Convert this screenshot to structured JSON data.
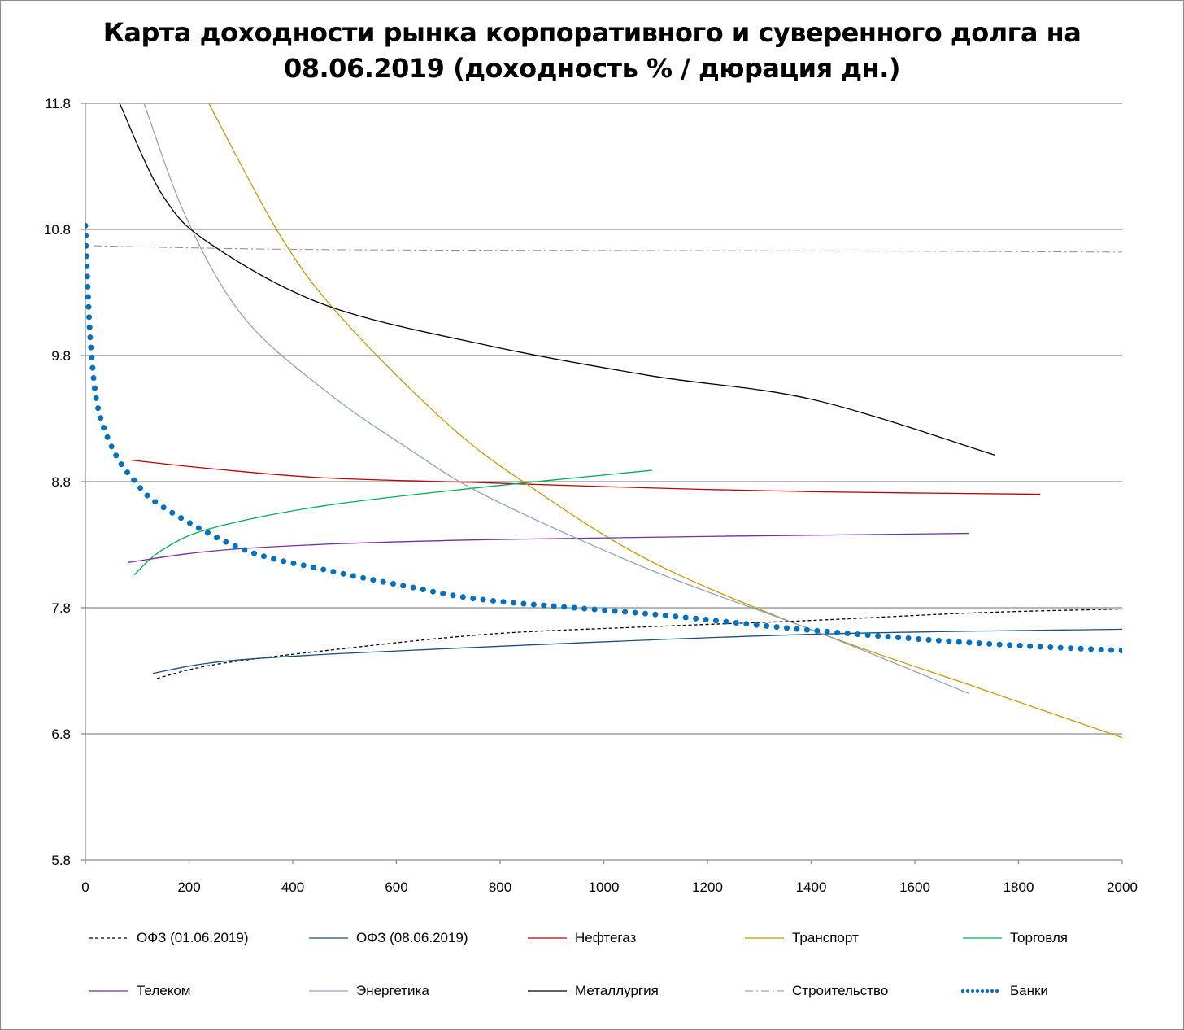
{
  "chart_data": {
    "type": "line",
    "title_lines": [
      "Карта доходности рынка корпоративного и суверенного долга на",
      "08.06.2019 (доходность % / дюрация дн.)"
    ],
    "xlabel": "",
    "ylabel": "",
    "xlim": [
      0,
      2000
    ],
    "ylim": [
      5.8,
      11.8
    ],
    "x_ticks": [
      "0",
      "200",
      "400",
      "600",
      "800",
      "1000",
      "1200",
      "1400",
      "1600",
      "1800",
      "2000"
    ],
    "y_ticks": [
      "11.8",
      "10.8",
      "9.8",
      "8.8",
      "7.8",
      "6.8",
      "5.8"
    ],
    "grid": "horizontal",
    "legend_position": "bottom",
    "series": [
      {
        "name": "ОФЗ (01.06.2019)",
        "color": "#000000",
        "style": "dashed",
        "points": [
          [
            138,
            7.24
          ],
          [
            250,
            7.35
          ],
          [
            463,
            7.46
          ],
          [
            776,
            7.59
          ],
          [
            1090,
            7.65
          ],
          [
            1404,
            7.7
          ],
          [
            1718,
            7.76
          ],
          [
            2000,
            7.79
          ]
        ]
      },
      {
        "name": "ОФЗ (08.06.2019)",
        "color": "#1f4e79",
        "style": "solid",
        "points": [
          [
            130,
            7.28
          ],
          [
            306,
            7.39
          ],
          [
            776,
            7.49
          ],
          [
            1404,
            7.59
          ],
          [
            2000,
            7.63
          ]
        ]
      },
      {
        "name": "Нефтегаз",
        "color": "#c00000",
        "style": "solid",
        "points": [
          [
            89,
            8.97
          ],
          [
            250,
            8.9
          ],
          [
            463,
            8.83
          ],
          [
            776,
            8.79
          ],
          [
            1090,
            8.75
          ],
          [
            1404,
            8.72
          ],
          [
            1842,
            8.7
          ]
        ]
      },
      {
        "name": "Транспорт",
        "color": "#c89a00",
        "style": "solid",
        "points": [
          [
            238,
            11.8
          ],
          [
            376,
            10.75
          ],
          [
            494,
            10.1
          ],
          [
            698,
            9.26
          ],
          [
            855,
            8.77
          ],
          [
            1090,
            8.17
          ],
          [
            1404,
            7.62
          ],
          [
            1718,
            7.17
          ],
          [
            2000,
            6.77
          ]
        ]
      },
      {
        "name": "Торговля",
        "color": "#00b050",
        "style": "solid",
        "points": [
          [
            94,
            8.06
          ],
          [
            149,
            8.26
          ],
          [
            243,
            8.43
          ],
          [
            463,
            8.61
          ],
          [
            776,
            8.76
          ],
          [
            1093,
            8.89
          ]
        ]
      },
      {
        "name": "Телеком",
        "color": "#7030a0",
        "style": "solid",
        "points": [
          [
            83,
            8.16
          ],
          [
            306,
            8.27
          ],
          [
            776,
            8.34
          ],
          [
            1705,
            8.39
          ]
        ]
      },
      {
        "name": "Энергетика",
        "color": "#8ea4c0",
        "style": "solid",
        "points": [
          [
            113,
            11.8
          ],
          [
            196,
            10.88
          ],
          [
            306,
            10.1
          ],
          [
            463,
            9.52
          ],
          [
            620,
            9.07
          ],
          [
            776,
            8.68
          ],
          [
            1090,
            8.1
          ],
          [
            1404,
            7.62
          ],
          [
            1704,
            7.12
          ]
        ]
      },
      {
        "name": "Металлургия",
        "color": "#000000",
        "style": "solid",
        "points": [
          [
            66,
            11.8
          ],
          [
            149,
            11.07
          ],
          [
            243,
            10.68
          ],
          [
            463,
            10.2
          ],
          [
            776,
            9.88
          ],
          [
            1090,
            9.64
          ],
          [
            1404,
            9.45
          ],
          [
            1755,
            9.01
          ]
        ]
      },
      {
        "name": "Строительство",
        "color": "#8c8c8c",
        "style": "dashdot",
        "points": [
          [
            16,
            10.67
          ],
          [
            463,
            10.64
          ],
          [
            1404,
            10.63
          ],
          [
            2000,
            10.62
          ]
        ]
      },
      {
        "name": "Банки",
        "color": "#0070c0",
        "style": "dotted",
        "points": [
          [
            0,
            10.83
          ],
          [
            5,
            10.3
          ],
          [
            11,
            9.85
          ],
          [
            24,
            9.39
          ],
          [
            55,
            9.04
          ],
          [
            94,
            8.81
          ],
          [
            149,
            8.6
          ],
          [
            306,
            8.26
          ],
          [
            463,
            8.1
          ],
          [
            620,
            7.97
          ],
          [
            776,
            7.86
          ],
          [
            1090,
            7.75
          ],
          [
            1404,
            7.62
          ],
          [
            1718,
            7.52
          ],
          [
            2000,
            7.46
          ]
        ]
      }
    ]
  }
}
